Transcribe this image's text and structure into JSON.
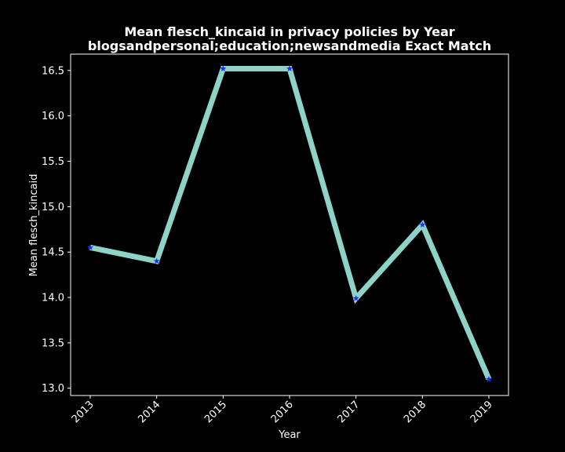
{
  "chart_data": {
    "type": "line",
    "title": "Mean flesch_kincaid in privacy policies by Year",
    "subtitle": "blogsandpersonal;education;newsandmedia Exact Match",
    "xlabel": "Year",
    "ylabel": "Mean flesch_kincaid",
    "categories": [
      "2013",
      "2014",
      "2015",
      "2016",
      "2017",
      "2018",
      "2019"
    ],
    "values": [
      14.55,
      14.4,
      16.52,
      16.52,
      13.99,
      14.8,
      13.1
    ],
    "ylim": [
      12.92,
      16.68
    ],
    "yticks": [
      "13.0",
      "13.5",
      "14.0",
      "14.5",
      "15.0",
      "15.5",
      "16.0",
      "16.5"
    ],
    "grid": false,
    "legend": "none",
    "colors": {
      "background": "#000000",
      "line": "#8dd3c7",
      "marker": "#1f2cff",
      "axis": "#ffffff",
      "text": "#ffffff"
    },
    "marker": "star"
  }
}
